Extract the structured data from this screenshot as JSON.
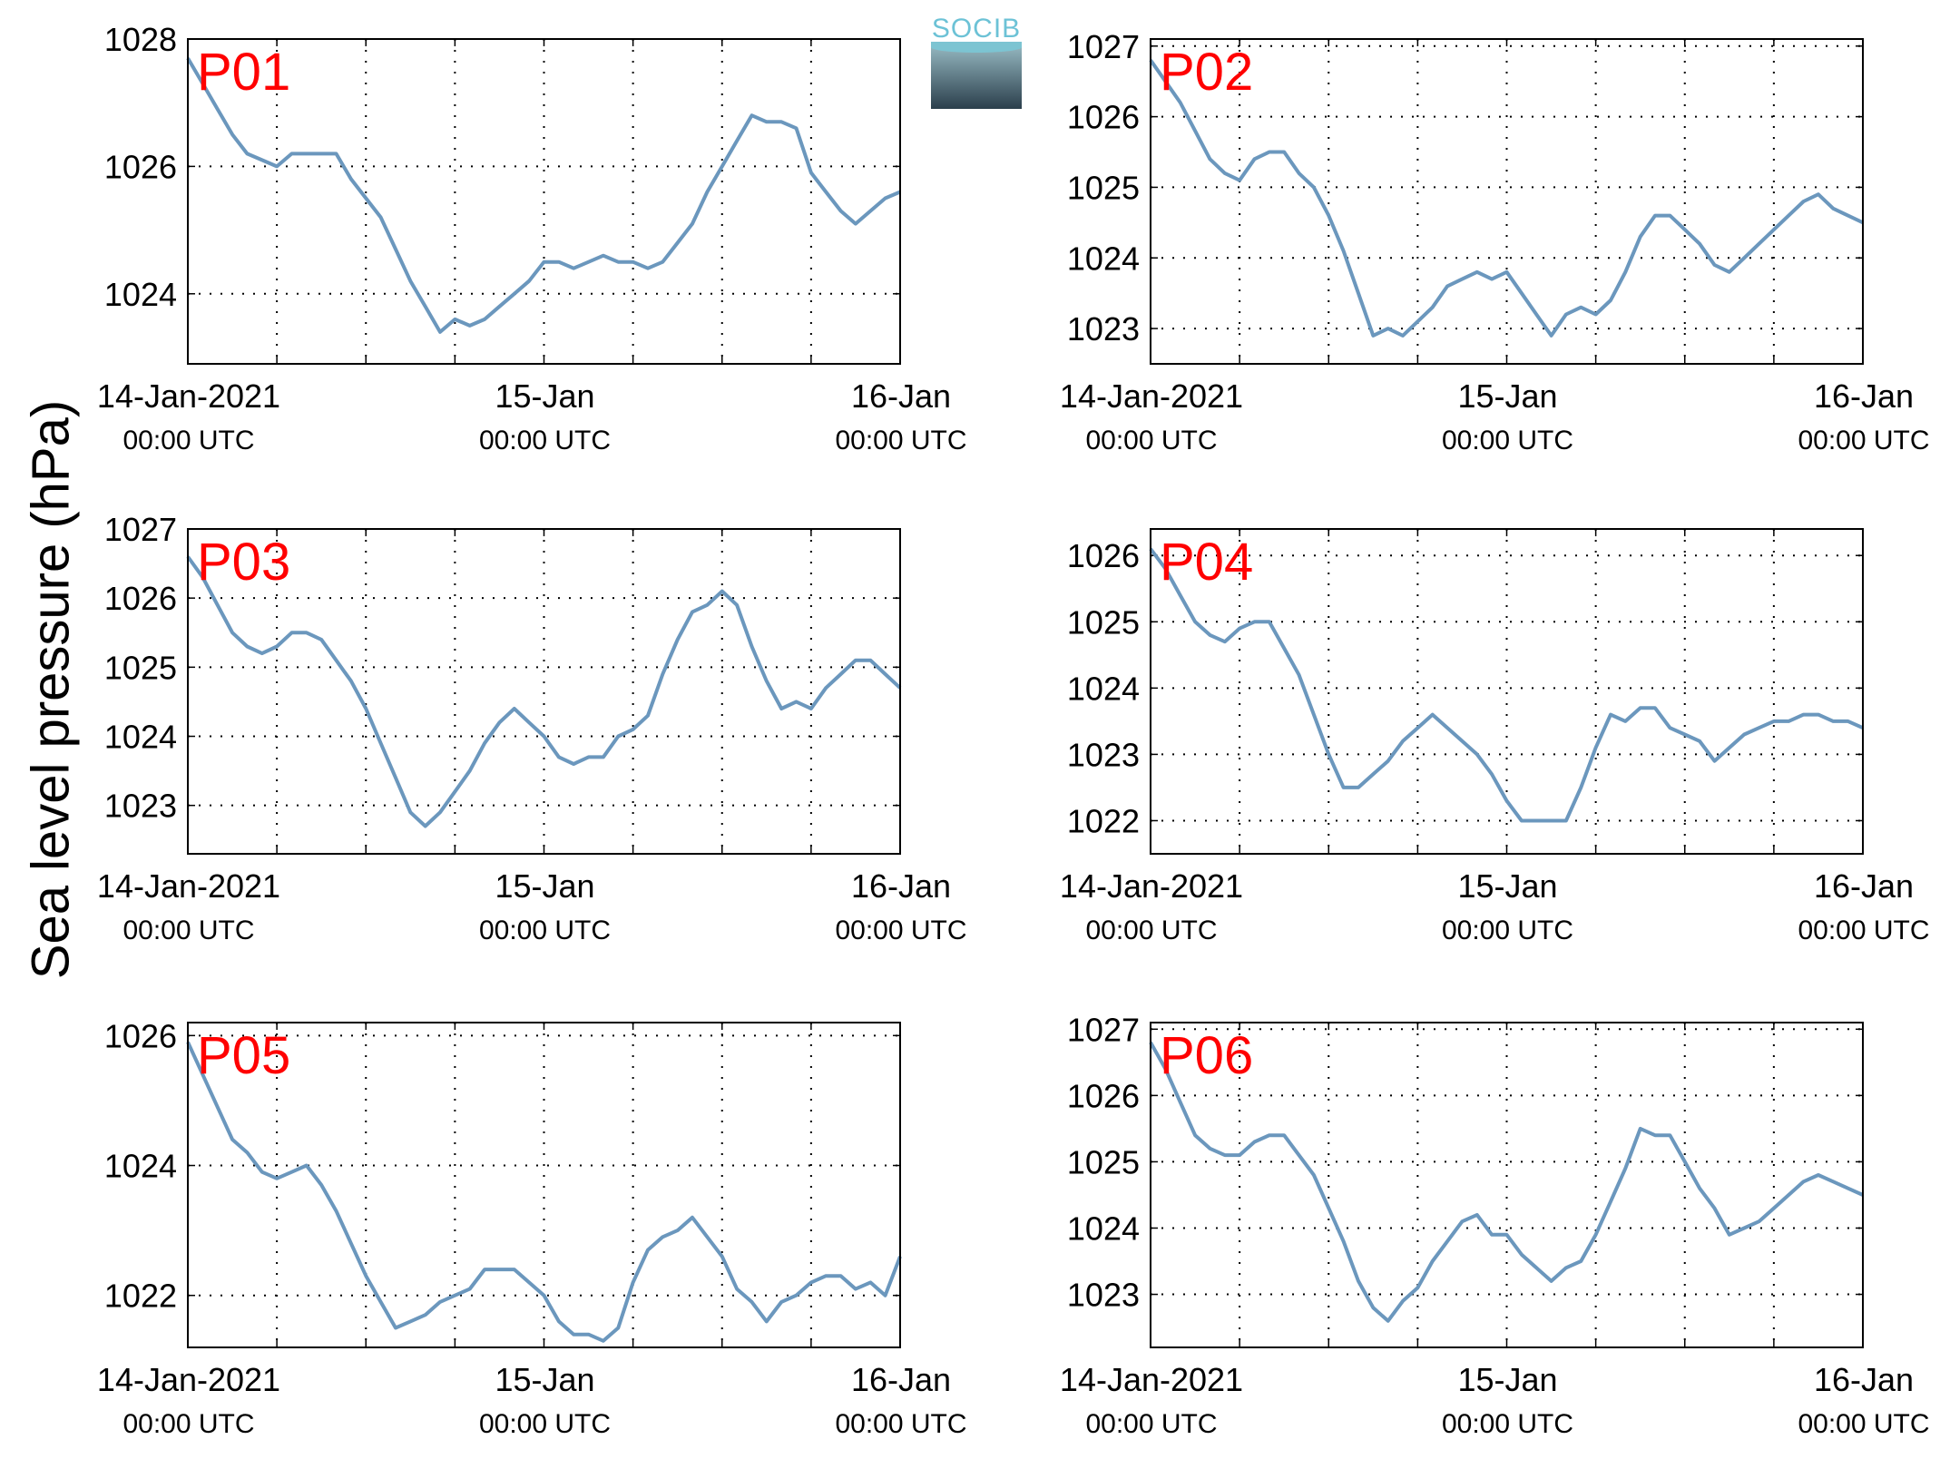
{
  "ylabel": "Sea level pressure (hPa)",
  "logo": {
    "text": "SOCIB"
  },
  "colors": {
    "line": "#6b97bd",
    "label": "#ff0000",
    "grid": "#000000"
  },
  "chart_data": [
    {
      "type": "line",
      "label": "P01",
      "xlim": [
        0,
        48
      ],
      "ylim": [
        1022.9,
        1028
      ],
      "yticks": [
        1024,
        1026,
        1028
      ],
      "ytick_labels": [
        "1024",
        "1026",
        "1028"
      ],
      "xticks": [
        0,
        24,
        48
      ],
      "xtick_labels": [
        [
          "14-Jan-2021",
          "00:00 UTC"
        ],
        [
          "15-Jan",
          "00:00 UTC"
        ],
        [
          "16-Jan",
          "00:00 UTC"
        ]
      ],
      "grid": true,
      "x": [
        0,
        1,
        2,
        3,
        4,
        5,
        6,
        7,
        8,
        9,
        10,
        11,
        12,
        13,
        14,
        15,
        16,
        17,
        18,
        19,
        20,
        21,
        22,
        23,
        24,
        25,
        26,
        27,
        28,
        29,
        30,
        31,
        32,
        33,
        34,
        35,
        36,
        37,
        38,
        39,
        40,
        41,
        42,
        43,
        44,
        45,
        46,
        47,
        48
      ],
      "y": [
        1027.7,
        1027.3,
        1026.9,
        1026.5,
        1026.2,
        1026.1,
        1026.0,
        1026.2,
        1026.2,
        1026.2,
        1026.2,
        1025.8,
        1025.5,
        1025.2,
        1024.7,
        1024.2,
        1023.8,
        1023.4,
        1023.6,
        1023.5,
        1023.6,
        1023.8,
        1024.0,
        1024.2,
        1024.5,
        1024.5,
        1024.4,
        1024.5,
        1024.6,
        1024.5,
        1024.5,
        1024.4,
        1024.5,
        1024.8,
        1025.1,
        1025.6,
        1026.0,
        1026.4,
        1026.8,
        1026.7,
        1026.7,
        1026.6,
        1025.9,
        1025.6,
        1025.3,
        1025.1,
        1025.3,
        1025.5,
        1025.6
      ]
    },
    {
      "type": "line",
      "label": "P02",
      "xlim": [
        0,
        48
      ],
      "ylim": [
        1022.5,
        1027.1
      ],
      "yticks": [
        1023,
        1024,
        1025,
        1026,
        1027
      ],
      "ytick_labels": [
        "1023",
        "1024",
        "1025",
        "1026",
        "1027"
      ],
      "xticks": [
        0,
        24,
        48
      ],
      "xtick_labels": [
        [
          "14-Jan-2021",
          "00:00 UTC"
        ],
        [
          "15-Jan",
          "00:00 UTC"
        ],
        [
          "16-Jan",
          "00:00 UTC"
        ]
      ],
      "grid": true,
      "x": [
        0,
        1,
        2,
        3,
        4,
        5,
        6,
        7,
        8,
        9,
        10,
        11,
        12,
        13,
        14,
        15,
        16,
        17,
        18,
        19,
        20,
        21,
        22,
        23,
        24,
        25,
        26,
        27,
        28,
        29,
        30,
        31,
        32,
        33,
        34,
        35,
        36,
        37,
        38,
        39,
        40,
        41,
        42,
        43,
        44,
        45,
        46,
        47,
        48
      ],
      "y": [
        1026.8,
        1026.5,
        1026.2,
        1025.8,
        1025.4,
        1025.2,
        1025.1,
        1025.4,
        1025.5,
        1025.5,
        1025.2,
        1025.0,
        1024.6,
        1024.1,
        1023.5,
        1022.9,
        1023.0,
        1022.9,
        1023.1,
        1023.3,
        1023.6,
        1023.7,
        1023.8,
        1023.7,
        1023.8,
        1023.5,
        1023.2,
        1022.9,
        1023.2,
        1023.3,
        1023.2,
        1023.4,
        1023.8,
        1024.3,
        1024.6,
        1024.6,
        1024.4,
        1024.2,
        1023.9,
        1023.8,
        1024.0,
        1024.2,
        1024.4,
        1024.6,
        1024.8,
        1024.9,
        1024.7,
        1024.6,
        1024.5
      ]
    },
    {
      "type": "line",
      "label": "P03",
      "xlim": [
        0,
        48
      ],
      "ylim": [
        1022.3,
        1027
      ],
      "yticks": [
        1023,
        1024,
        1025,
        1026,
        1027
      ],
      "ytick_labels": [
        "1023",
        "1024",
        "1025",
        "1026",
        "1027"
      ],
      "xticks": [
        0,
        24,
        48
      ],
      "xtick_labels": [
        [
          "14-Jan-2021",
          "00:00 UTC"
        ],
        [
          "15-Jan",
          "00:00 UTC"
        ],
        [
          "16-Jan",
          "00:00 UTC"
        ]
      ],
      "grid": true,
      "x": [
        0,
        1,
        2,
        3,
        4,
        5,
        6,
        7,
        8,
        9,
        10,
        11,
        12,
        13,
        14,
        15,
        16,
        17,
        18,
        19,
        20,
        21,
        22,
        23,
        24,
        25,
        26,
        27,
        28,
        29,
        30,
        31,
        32,
        33,
        34,
        35,
        36,
        37,
        38,
        39,
        40,
        41,
        42,
        43,
        44,
        45,
        46,
        47,
        48
      ],
      "y": [
        1026.6,
        1026.3,
        1025.9,
        1025.5,
        1025.3,
        1025.2,
        1025.3,
        1025.5,
        1025.5,
        1025.4,
        1025.1,
        1024.8,
        1024.4,
        1023.9,
        1023.4,
        1022.9,
        1022.7,
        1022.9,
        1023.2,
        1023.5,
        1023.9,
        1024.2,
        1024.4,
        1024.2,
        1024.0,
        1023.7,
        1023.6,
        1023.7,
        1023.7,
        1024.0,
        1024.1,
        1024.3,
        1024.9,
        1025.4,
        1025.8,
        1025.9,
        1026.1,
        1025.9,
        1025.3,
        1024.8,
        1024.4,
        1024.5,
        1024.4,
        1024.7,
        1024.9,
        1025.1,
        1025.1,
        1024.9,
        1024.7
      ]
    },
    {
      "type": "line",
      "label": "P04",
      "xlim": [
        0,
        48
      ],
      "ylim": [
        1021.5,
        1026.4
      ],
      "yticks": [
        1022,
        1023,
        1024,
        1025,
        1026
      ],
      "ytick_labels": [
        "1022",
        "1023",
        "1024",
        "1025",
        "1026"
      ],
      "xticks": [
        0,
        24,
        48
      ],
      "xtick_labels": [
        [
          "14-Jan-2021",
          "00:00 UTC"
        ],
        [
          "15-Jan",
          "00:00 UTC"
        ],
        [
          "16-Jan",
          "00:00 UTC"
        ]
      ],
      "grid": true,
      "x": [
        0,
        1,
        2,
        3,
        4,
        5,
        6,
        7,
        8,
        9,
        10,
        11,
        12,
        13,
        14,
        15,
        16,
        17,
        18,
        19,
        20,
        21,
        22,
        23,
        24,
        25,
        26,
        27,
        28,
        29,
        30,
        31,
        32,
        33,
        34,
        35,
        36,
        37,
        38,
        39,
        40,
        41,
        42,
        43,
        44,
        45,
        46,
        47,
        48
      ],
      "y": [
        1026.1,
        1025.8,
        1025.4,
        1025.0,
        1024.8,
        1024.7,
        1024.9,
        1025.0,
        1025.0,
        1024.6,
        1024.2,
        1023.6,
        1023.0,
        1022.5,
        1022.5,
        1022.7,
        1022.9,
        1023.2,
        1023.4,
        1023.6,
        1023.4,
        1023.2,
        1023.0,
        1022.7,
        1022.3,
        1022.0,
        1022.0,
        1022.0,
        1022.0,
        1022.5,
        1023.1,
        1023.6,
        1023.5,
        1023.7,
        1023.7,
        1023.4,
        1023.3,
        1023.2,
        1022.9,
        1023.1,
        1023.3,
        1023.4,
        1023.5,
        1023.5,
        1023.6,
        1023.6,
        1023.5,
        1023.5,
        1023.4
      ]
    },
    {
      "type": "line",
      "label": "P05",
      "xlim": [
        0,
        48
      ],
      "ylim": [
        1021.2,
        1026.2
      ],
      "yticks": [
        1022,
        1024,
        1026
      ],
      "ytick_labels": [
        "1022",
        "1024",
        "1026"
      ],
      "xticks": [
        0,
        24,
        48
      ],
      "xtick_labels": [
        [
          "14-Jan-2021",
          "00:00 UTC"
        ],
        [
          "15-Jan",
          "00:00 UTC"
        ],
        [
          "16-Jan",
          "00:00 UTC"
        ]
      ],
      "grid": true,
      "x": [
        0,
        1,
        2,
        3,
        4,
        5,
        6,
        7,
        8,
        9,
        10,
        11,
        12,
        13,
        14,
        15,
        16,
        17,
        18,
        19,
        20,
        21,
        22,
        23,
        24,
        25,
        26,
        27,
        28,
        29,
        30,
        31,
        32,
        33,
        34,
        35,
        36,
        37,
        38,
        39,
        40,
        41,
        42,
        43,
        44,
        45,
        46,
        47,
        48
      ],
      "y": [
        1025.9,
        1025.4,
        1024.9,
        1024.4,
        1024.2,
        1023.9,
        1023.8,
        1023.9,
        1024.0,
        1023.7,
        1023.3,
        1022.8,
        1022.3,
        1021.9,
        1021.5,
        1021.6,
        1021.7,
        1021.9,
        1022.0,
        1022.1,
        1022.4,
        1022.4,
        1022.4,
        1022.2,
        1022.0,
        1021.6,
        1021.4,
        1021.4,
        1021.3,
        1021.5,
        1022.2,
        1022.7,
        1022.9,
        1023.0,
        1023.2,
        1022.9,
        1022.6,
        1022.1,
        1021.9,
        1021.6,
        1021.9,
        1022.0,
        1022.2,
        1022.3,
        1022.3,
        1022.1,
        1022.2,
        1022.0,
        1022.6
      ]
    },
    {
      "type": "line",
      "label": "P06",
      "xlim": [
        0,
        48
      ],
      "ylim": [
        1022.2,
        1027.1
      ],
      "yticks": [
        1023,
        1024,
        1025,
        1026,
        1027
      ],
      "ytick_labels": [
        "1023",
        "1024",
        "1025",
        "1026",
        "1027"
      ],
      "xticks": [
        0,
        24,
        48
      ],
      "xtick_labels": [
        [
          "14-Jan-2021",
          "00:00 UTC"
        ],
        [
          "15-Jan",
          "00:00 UTC"
        ],
        [
          "16-Jan",
          "00:00 UTC"
        ]
      ],
      "grid": true,
      "x": [
        0,
        1,
        2,
        3,
        4,
        5,
        6,
        7,
        8,
        9,
        10,
        11,
        12,
        13,
        14,
        15,
        16,
        17,
        18,
        19,
        20,
        21,
        22,
        23,
        24,
        25,
        26,
        27,
        28,
        29,
        30,
        31,
        32,
        33,
        34,
        35,
        36,
        37,
        38,
        39,
        40,
        41,
        42,
        43,
        44,
        45,
        46,
        47,
        48
      ],
      "y": [
        1026.8,
        1026.4,
        1025.9,
        1025.4,
        1025.2,
        1025.1,
        1025.1,
        1025.3,
        1025.4,
        1025.4,
        1025.1,
        1024.8,
        1024.3,
        1023.8,
        1023.2,
        1022.8,
        1022.6,
        1022.9,
        1023.1,
        1023.5,
        1023.8,
        1024.1,
        1024.2,
        1023.9,
        1023.9,
        1023.6,
        1023.4,
        1023.2,
        1023.4,
        1023.5,
        1023.9,
        1024.4,
        1024.9,
        1025.5,
        1025.4,
        1025.4,
        1025.0,
        1024.6,
        1024.3,
        1023.9,
        1024.0,
        1024.1,
        1024.3,
        1024.5,
        1024.7,
        1024.8,
        1024.7,
        1024.6,
        1024.5
      ]
    }
  ]
}
